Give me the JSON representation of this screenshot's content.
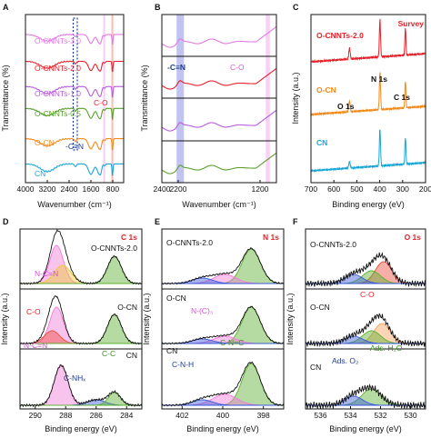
{
  "chart_data": [
    {
      "panel": "A",
      "type": "line",
      "xlabel": "Wavenumber (cm⁻¹)",
      "ylabel": "Transmittance (%)",
      "xlim": [
        4000,
        400
      ],
      "xticks": [
        4000,
        3200,
        2400,
        1600,
        800
      ],
      "series": [
        {
          "name": "O-CNNTs-3.0",
          "color": "#e27ae2",
          "offset": 0.86
        },
        {
          "name": "O-CNNTs-2.0",
          "color": "#e8202a",
          "offset": 0.7
        },
        {
          "name": "O-CNNTs-1.0",
          "color": "#b85ce0",
          "offset": 0.55
        },
        {
          "name": "O-CNNTs-0.5",
          "color": "#5aa02c",
          "offset": 0.42
        },
        {
          "name": "O-CN",
          "color": "#f28a1c",
          "offset": 0.24
        },
        {
          "name": "CN",
          "color": "#1aa7d8",
          "offset": 0.09
        }
      ],
      "annotations": [
        "C-O",
        "-C≡N"
      ],
      "bands": [
        {
          "from": 2250,
          "to": 2100
        },
        {
          "from": 1150,
          "to": 1080
        },
        {
          "from": 850,
          "to": 780
        }
      ]
    },
    {
      "panel": "B",
      "type": "line",
      "xlabel": "Wavenumber (cm⁻¹)",
      "ylabel": "Transmittance (%)",
      "xlim": [
        2400,
        1000
      ],
      "xticks": [
        2400,
        2200,
        1200
      ],
      "annotations": [
        "-C≡N",
        "C-O"
      ],
      "bands": [
        {
          "from": 2220,
          "to": 2130
        },
        {
          "from": 1130,
          "to": 1080
        }
      ]
    },
    {
      "panel": "C",
      "type": "line",
      "title": "Survey",
      "xlabel": "Binding energy (eV)",
      "ylabel": "Intensity (a.u.)",
      "xlim": [
        700,
        200
      ],
      "xticks": [
        700,
        600,
        500,
        400,
        300,
        200
      ],
      "series": [
        {
          "name": "O-CNNTs-2.0",
          "color": "#e8202a"
        },
        {
          "name": "O-CN",
          "color": "#f28a1c"
        },
        {
          "name": "CN",
          "color": "#1aa7d8"
        }
      ],
      "peaks": [
        {
          "label": "O 1s",
          "x": 532
        },
        {
          "label": "N 1s",
          "x": 399
        },
        {
          "label": "C 1s",
          "x": 288
        }
      ]
    },
    {
      "panel": "D",
      "type": "line",
      "title": "C 1s",
      "xlabel": "Binding energy (eV)",
      "ylabel": "Intensity (a.u.)",
      "xlim": [
        291,
        283
      ],
      "xticks": [
        290,
        288,
        286,
        284
      ],
      "series": [
        {
          "name": "O-CNNTs-2.0"
        },
        {
          "name": "O-CN"
        },
        {
          "name": "CN"
        }
      ],
      "components": [
        {
          "label": "N-C=N",
          "x": 288.2
        },
        {
          "label": "C-O",
          "x": 288.8
        },
        {
          "label": "C-NHₓ",
          "x": 286.0
        },
        {
          "label": "C-C",
          "x": 284.8
        }
      ]
    },
    {
      "panel": "E",
      "type": "line",
      "title": "N 1s",
      "xlabel": "Binding energy (eV)",
      "ylabel": "Intensity (a.u.)",
      "xlim": [
        403,
        397
      ],
      "xticks": [
        402,
        400,
        398
      ],
      "series": [
        {
          "name": "O-CNNTs-2.0"
        },
        {
          "name": "O-CN"
        },
        {
          "name": "CN"
        }
      ],
      "components": [
        {
          "label": "C-N=C",
          "x": 398.6
        },
        {
          "label": "N-(C)₃",
          "x": 399.9
        },
        {
          "label": "C-N-H",
          "x": 401.0
        }
      ]
    },
    {
      "panel": "F",
      "type": "line",
      "title": "O 1s",
      "xlabel": "Binding energy (eV)",
      "ylabel": "Intensity (a.u.)",
      "xlim": [
        537,
        529
      ],
      "xticks": [
        536,
        534,
        532,
        530
      ],
      "series": [
        {
          "name": "O-CNNTs-2.0"
        },
        {
          "name": "O-CN"
        },
        {
          "name": "CN"
        }
      ],
      "components": [
        {
          "label": "C-O",
          "x": 531.8
        },
        {
          "label": "Ads. H₂O",
          "x": 532.6
        },
        {
          "label": "Ads. O₂",
          "x": 533.8
        }
      ]
    }
  ]
}
